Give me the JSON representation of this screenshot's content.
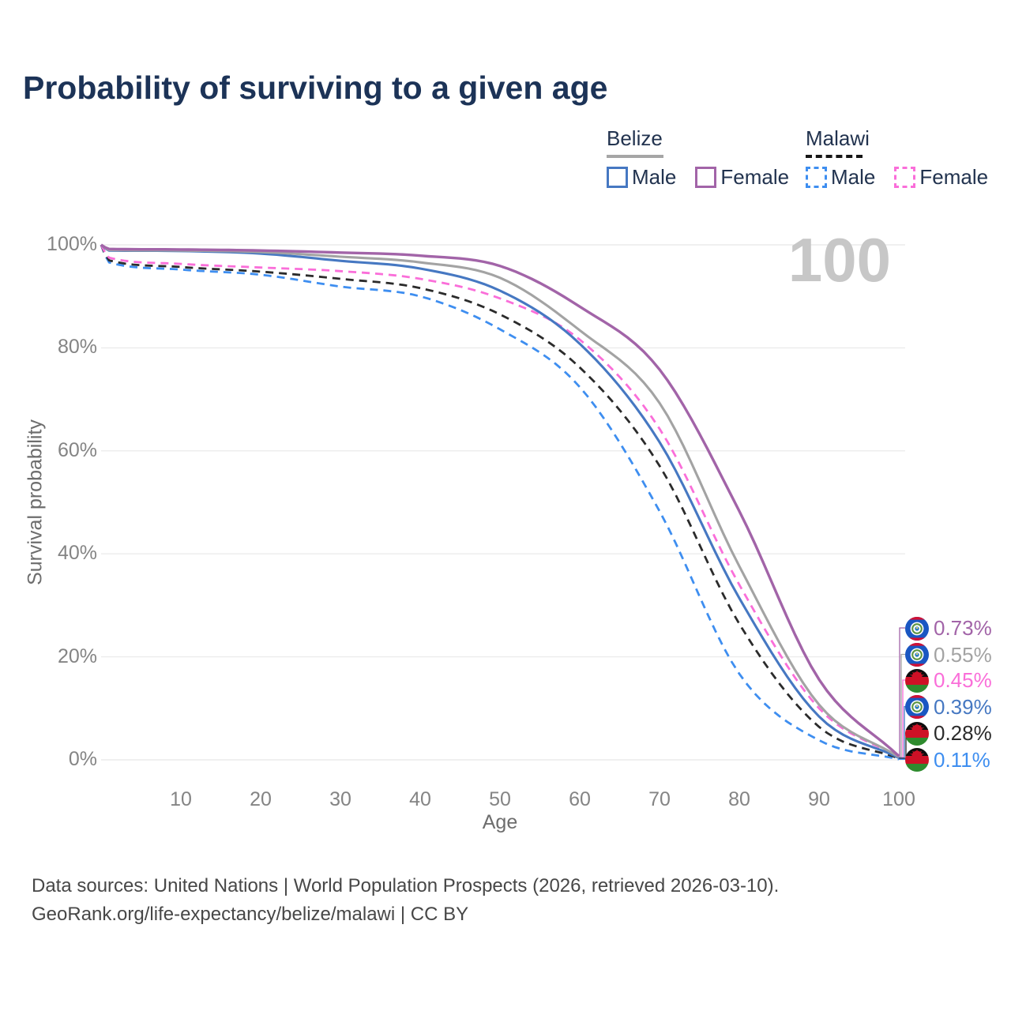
{
  "title": "Probability of surviving to a given age",
  "watermark_age": "100",
  "legend": {
    "groups": [
      {
        "name": "Belize",
        "underline_style": "solid",
        "underline_color": "#a6a6a6",
        "items": [
          {
            "label": "Male",
            "color": "#4678c2",
            "dashed": false
          },
          {
            "label": "Female",
            "color": "#a264a8",
            "dashed": false
          }
        ]
      },
      {
        "name": "Malawi",
        "underline_style": "dashed",
        "underline_color": "#161616",
        "items": [
          {
            "label": "Male",
            "color": "#3e8ef0",
            "dashed": true
          },
          {
            "label": "Female",
            "color": "#fa6ed9",
            "dashed": true
          }
        ]
      }
    ]
  },
  "chart_data": {
    "type": "line",
    "title": "Probability of surviving to a given age",
    "xlabel": "Age",
    "ylabel": "Survival probability",
    "xlim": [
      0,
      100
    ],
    "ylim": [
      0,
      100
    ],
    "grid": "horizontal",
    "legend_position": "top-right",
    "x_ticks": [
      "10",
      "20",
      "30",
      "40",
      "50",
      "60",
      "70",
      "80",
      "90",
      "100"
    ],
    "x_tick_values": [
      10,
      20,
      30,
      40,
      50,
      60,
      70,
      80,
      90,
      100
    ],
    "y_ticks": [
      "0%",
      "20%",
      "40%",
      "60%",
      "80%",
      "100%"
    ],
    "y_tick_values": [
      0,
      20,
      40,
      60,
      80,
      100
    ],
    "current_age_indicator": 100,
    "ages": [
      0,
      1,
      10,
      20,
      30,
      40,
      50,
      60,
      70,
      80,
      90,
      100
    ],
    "series": [
      {
        "name": "Belize Female",
        "country": "Belize",
        "sex": "Female",
        "line": "solid",
        "color": "#a264a8",
        "flag": "belize",
        "end_label": "0.73%",
        "end_value": 0.73,
        "values": [
          100,
          99.2,
          99.1,
          98.9,
          98.5,
          97.9,
          95.9,
          88.0,
          75.8,
          48.3,
          15.6,
          0.73
        ]
      },
      {
        "name": "Belize (both sexes)",
        "country": "Belize",
        "sex": "Both",
        "line": "solid",
        "color": "#a3a3a3",
        "flag": "belize",
        "end_label": "0.55%",
        "end_value": 0.55,
        "values": [
          100,
          99.0,
          98.9,
          98.6,
          97.7,
          96.6,
          93.6,
          83.4,
          69.3,
          37.6,
          10.7,
          0.55
        ]
      },
      {
        "name": "Malawi Female",
        "country": "Malawi",
        "sex": "Female",
        "line": "dashed",
        "color": "#fa6ed9",
        "flag": "malawi",
        "end_label": "0.45%",
        "end_value": 0.45,
        "values": [
          100,
          97.5,
          96.3,
          95.6,
          94.9,
          93.4,
          89.6,
          81.6,
          64.3,
          34.0,
          10.0,
          0.45
        ]
      },
      {
        "name": "Belize Male",
        "country": "Belize",
        "sex": "Male",
        "line": "solid",
        "color": "#4678c2",
        "flag": "belize",
        "end_label": "0.39%",
        "end_value": 0.39,
        "values": [
          100,
          98.9,
          98.8,
          98.3,
          96.9,
          95.4,
          91.1,
          80.8,
          61.7,
          31.4,
          8.4,
          0.39
        ]
      },
      {
        "name": "Malawi (both sexes)",
        "country": "Malawi",
        "sex": "Both",
        "line": "dashed",
        "color": "#2b2b2b",
        "flag": "malawi",
        "end_label": "0.28%",
        "end_value": 0.28,
        "values": [
          100,
          97.0,
          95.7,
          94.8,
          93.4,
          91.6,
          86.5,
          76.2,
          57.1,
          26.4,
          6.4,
          0.28
        ]
      },
      {
        "name": "Malawi Male",
        "country": "Malawi",
        "sex": "Male",
        "line": "dashed",
        "color": "#3e8ef0",
        "flag": "malawi",
        "end_label": "0.11%",
        "end_value": 0.11,
        "values": [
          100,
          96.6,
          95.2,
          94.2,
          91.9,
          90.0,
          83.6,
          72.4,
          48.3,
          16.7,
          3.8,
          0.11
        ]
      }
    ]
  },
  "footer": {
    "line1": "Data sources: United Nations | World Population Prospects (2026, retrieved 2026-03-10).",
    "line2": "GeoRank.org/life-expectancy/belize/malawi | CC BY"
  },
  "colors": {
    "title": "#1c3357",
    "grid": "#ececec",
    "ticks": "#848484",
    "watermark": "#c7c7c7",
    "footer": "#474747"
  }
}
